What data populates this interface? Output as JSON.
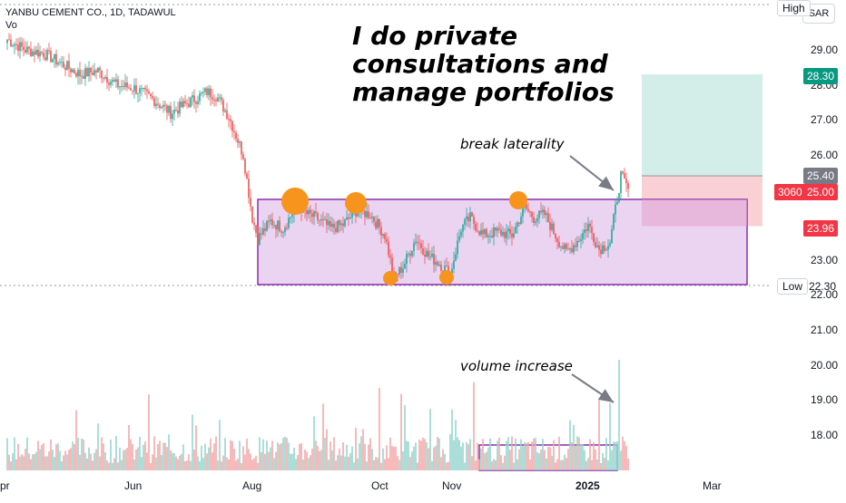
{
  "header": {
    "symbol_line": "YANBU CEMENT CO., 1D, TADAWUL",
    "volume_label": "Vo"
  },
  "currency_button": "SAR",
  "annotations": {
    "headline_lines": [
      "I do private",
      "consultations and",
      "manage portfolios"
    ],
    "breakout_note": "break laterality",
    "volume_note": "volume increase"
  },
  "price_scale": {
    "ticks": [
      "29.00",
      "28.00",
      "27.00",
      "26.00",
      "23.00",
      "22.00",
      "21.00",
      "20.00",
      "19.00",
      "18.00"
    ],
    "high_tag": "High",
    "low_tag": "Low",
    "low_value": "22.30",
    "target_value": "28.30",
    "entry_value": "25.40",
    "last_price": "25.00",
    "countdown": "3060",
    "stop_value": "23.96"
  },
  "colors": {
    "up": "#26a69a",
    "down": "#ef5350",
    "vol_up": "#8fd3cc",
    "vol_down": "#f4a3a3",
    "range_fill": "#e7cdf0",
    "range_border": "#8b2fa8",
    "circle": "#f7941d",
    "target_fill": "#d3ede9",
    "stop_fill": "#f9d1d4",
    "text": "#131722"
  },
  "chart_data": {
    "type": "candlestick",
    "title": "YANBU CEMENT CO., 1D, TADAWUL",
    "x_ticks": [
      "pr",
      "Jun",
      "Aug",
      "Oct",
      "Nov",
      "2025",
      "Mar"
    ],
    "ylim": [
      22.0,
      29.5
    ],
    "grid": false,
    "close_anchors": [
      [
        0,
        29.3
      ],
      [
        10,
        29.0
      ],
      [
        20,
        28.9
      ],
      [
        30,
        28.6
      ],
      [
        40,
        28.3
      ],
      [
        50,
        28.4
      ],
      [
        60,
        28.0
      ],
      [
        70,
        27.9
      ],
      [
        80,
        27.6
      ],
      [
        90,
        27.2
      ],
      [
        100,
        27.5
      ],
      [
        110,
        27.8
      ],
      [
        115,
        27.7
      ],
      [
        122,
        27.1
      ],
      [
        130,
        26.0
      ],
      [
        135,
        24.2
      ],
      [
        138,
        23.6
      ],
      [
        145,
        24.1
      ],
      [
        152,
        23.9
      ],
      [
        160,
        24.6
      ],
      [
        165,
        24.3
      ],
      [
        170,
        24.2
      ],
      [
        178,
        23.9
      ],
      [
        185,
        24.0
      ],
      [
        192,
        24.4
      ],
      [
        200,
        24.3
      ],
      [
        208,
        23.7
      ],
      [
        213,
        22.5
      ],
      [
        218,
        22.8
      ],
      [
        225,
        23.6
      ],
      [
        232,
        23.1
      ],
      [
        238,
        22.9
      ],
      [
        244,
        22.6
      ],
      [
        250,
        23.9
      ],
      [
        255,
        24.2
      ],
      [
        262,
        23.7
      ],
      [
        270,
        23.8
      ],
      [
        278,
        23.7
      ],
      [
        285,
        24.5
      ],
      [
        290,
        24.2
      ],
      [
        296,
        24.3
      ],
      [
        303,
        23.6
      ],
      [
        308,
        23.2
      ],
      [
        315,
        23.6
      ],
      [
        320,
        24.0
      ],
      [
        326,
        23.3
      ],
      [
        332,
        23.5
      ],
      [
        338,
        25.4
      ],
      [
        342,
        25.0
      ]
    ],
    "volume_range": [
      0,
      100
    ]
  }
}
